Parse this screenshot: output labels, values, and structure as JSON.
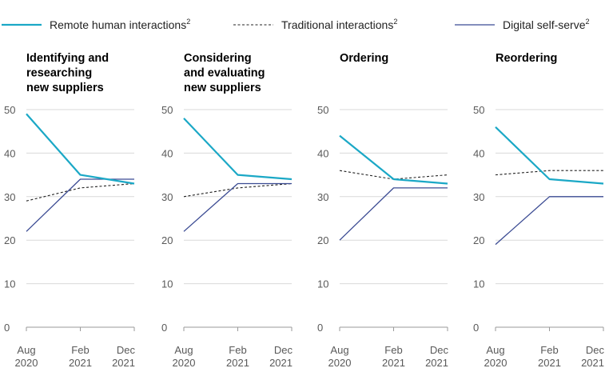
{
  "legend": [
    {
      "label": "Remote human interactions",
      "sup": "2",
      "color": "#1ba8c6",
      "style": "solid-thick"
    },
    {
      "label": "Traditional interactions",
      "sup": "2",
      "color": "#222222",
      "style": "dashed"
    },
    {
      "label": "Digital self-serve",
      "sup": "2",
      "color": "#3b4b93",
      "style": "solid"
    }
  ],
  "chart_data": [
    {
      "type": "line",
      "title_lines": [
        "Identifying and",
        "researching",
        "new suppliers"
      ],
      "x": [
        [
          "Aug",
          "2020"
        ],
        [
          "Feb",
          "2021"
        ],
        [
          "Dec",
          "2021"
        ]
      ],
      "yticks": [
        0,
        10,
        20,
        30,
        40,
        50
      ],
      "ylim": [
        0,
        50
      ],
      "grid": true,
      "series": [
        {
          "name": "Remote human interactions",
          "values": [
            49,
            35,
            33
          ]
        },
        {
          "name": "Traditional interactions",
          "values": [
            29,
            32,
            33
          ]
        },
        {
          "name": "Digital self-serve",
          "values": [
            22,
            34,
            34
          ]
        }
      ]
    },
    {
      "type": "line",
      "title_lines": [
        "Considering",
        "and evaluating",
        "new suppliers"
      ],
      "x": [
        [
          "Aug",
          "2020"
        ],
        [
          "Feb",
          "2021"
        ],
        [
          "Dec",
          "2021"
        ]
      ],
      "yticks": [
        0,
        10,
        20,
        30,
        40,
        50
      ],
      "ylim": [
        0,
        50
      ],
      "grid": true,
      "series": [
        {
          "name": "Remote human interactions",
          "values": [
            48,
            35,
            34
          ]
        },
        {
          "name": "Traditional interactions",
          "values": [
            30,
            32,
            33
          ]
        },
        {
          "name": "Digital self-serve",
          "values": [
            22,
            33,
            33
          ]
        }
      ]
    },
    {
      "type": "line",
      "title_lines": [
        "Ordering"
      ],
      "x": [
        [
          "Aug",
          "2020"
        ],
        [
          "Feb",
          "2021"
        ],
        [
          "Dec",
          "2021"
        ]
      ],
      "yticks": [
        0,
        10,
        20,
        30,
        40,
        50
      ],
      "ylim": [
        0,
        50
      ],
      "grid": true,
      "series": [
        {
          "name": "Remote human interactions",
          "values": [
            44,
            34,
            33
          ]
        },
        {
          "name": "Traditional interactions",
          "values": [
            36,
            34,
            35
          ]
        },
        {
          "name": "Digital self-serve",
          "values": [
            20,
            32,
            32
          ]
        }
      ]
    },
    {
      "type": "line",
      "title_lines": [
        "Reordering"
      ],
      "x": [
        [
          "Aug",
          "2020"
        ],
        [
          "Feb",
          "2021"
        ],
        [
          "Dec",
          "2021"
        ]
      ],
      "yticks": [
        0,
        10,
        20,
        30,
        40,
        50
      ],
      "ylim": [
        0,
        50
      ],
      "grid": true,
      "series": [
        {
          "name": "Remote human interactions",
          "values": [
            46,
            34,
            33
          ]
        },
        {
          "name": "Traditional interactions",
          "values": [
            35,
            36,
            36
          ]
        },
        {
          "name": "Digital self-serve",
          "values": [
            19,
            30,
            30
          ]
        }
      ]
    }
  ]
}
